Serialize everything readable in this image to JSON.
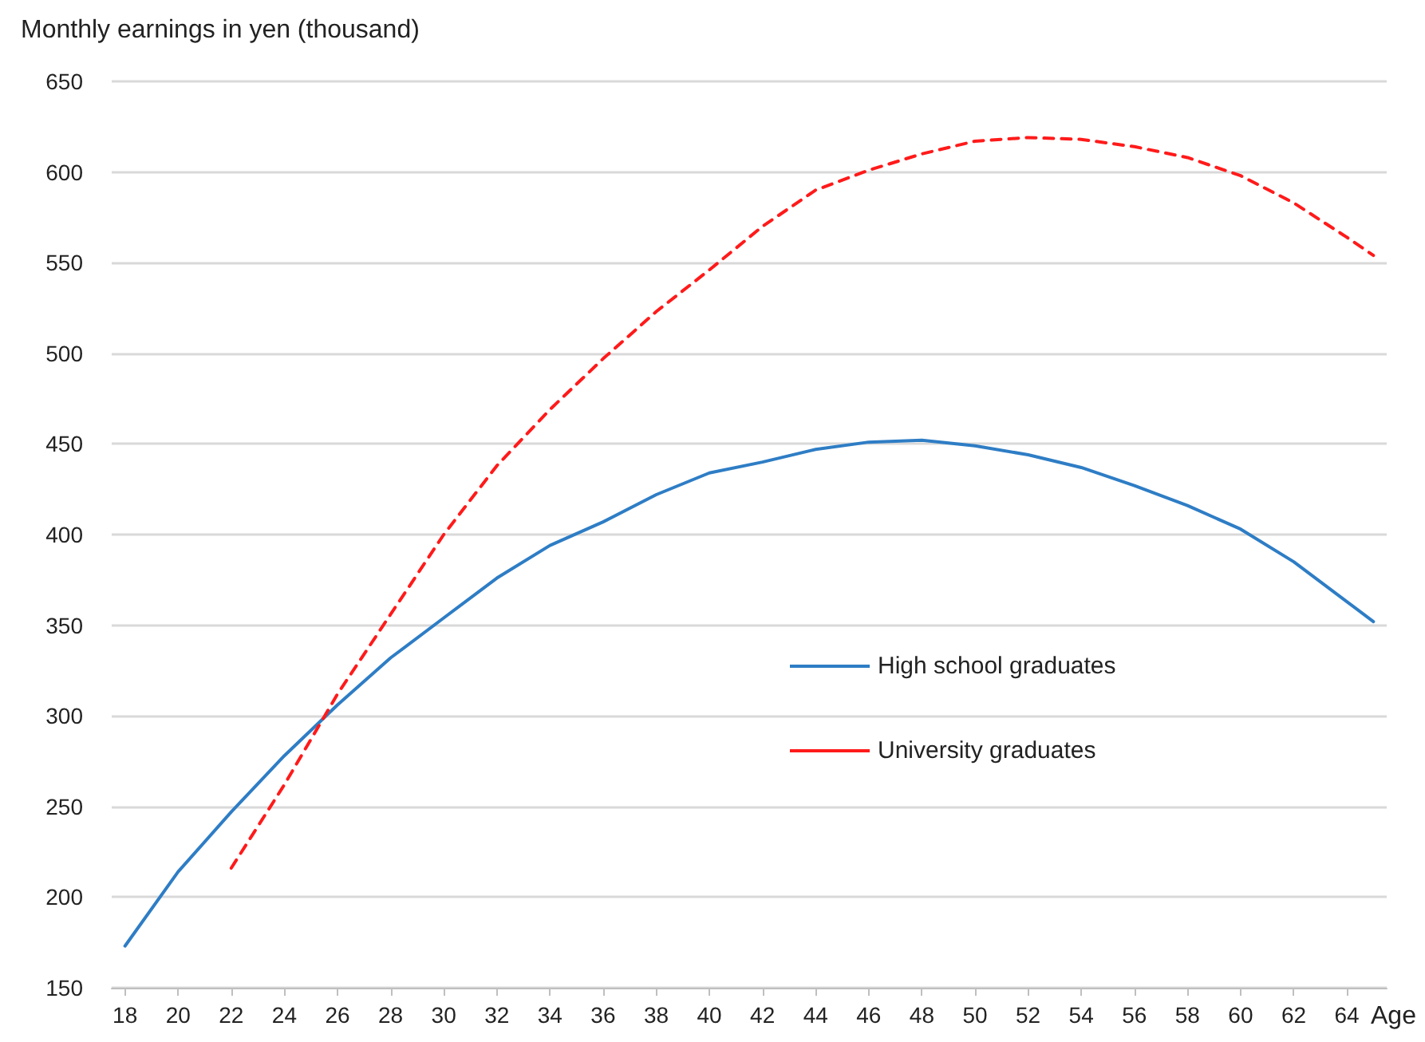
{
  "chart_data": {
    "type": "line",
    "ylabel": "Monthly earnings in yen (thousand)",
    "xlabel": "Age",
    "xlim": [
      17.5,
      65.5
    ],
    "xticks": [
      18,
      20,
      22,
      24,
      26,
      28,
      30,
      32,
      34,
      36,
      38,
      40,
      42,
      44,
      46,
      48,
      50,
      52,
      54,
      56,
      58,
      60,
      62,
      64
    ],
    "ylim": [
      150,
      650
    ],
    "yticks": [
      150,
      200,
      250,
      300,
      350,
      400,
      450,
      500,
      550,
      600,
      650
    ],
    "grid": "y",
    "legend": "right",
    "marker": "none",
    "series": [
      {
        "name": "High school graduates",
        "color": "#2e7dc5",
        "line_style": "solid",
        "x": [
          18,
          20,
          22,
          24,
          26,
          28,
          30,
          32,
          34,
          36,
          38,
          40,
          42,
          44,
          46,
          48,
          50,
          52,
          54,
          56,
          58,
          60,
          62,
          64,
          65
        ],
        "values": [
          173,
          214,
          247,
          278,
          306,
          332,
          354,
          376,
          394,
          407,
          422,
          434,
          440,
          447,
          451,
          452,
          449,
          444,
          437,
          427,
          416,
          403,
          385,
          363,
          352
        ]
      },
      {
        "name": "University graduates",
        "color": "#ff1a1a",
        "line_style": "dashed",
        "x": [
          22,
          24,
          26,
          28,
          30,
          32,
          34,
          36,
          38,
          40,
          42,
          44,
          46,
          48,
          50,
          52,
          54,
          56,
          58,
          60,
          62,
          64,
          65
        ],
        "values": [
          216,
          262,
          312,
          356,
          400,
          438,
          469,
          497,
          523,
          546,
          570,
          590,
          601,
          610,
          617,
          619,
          618,
          614,
          608,
          598,
          583,
          564,
          554
        ]
      }
    ]
  }
}
